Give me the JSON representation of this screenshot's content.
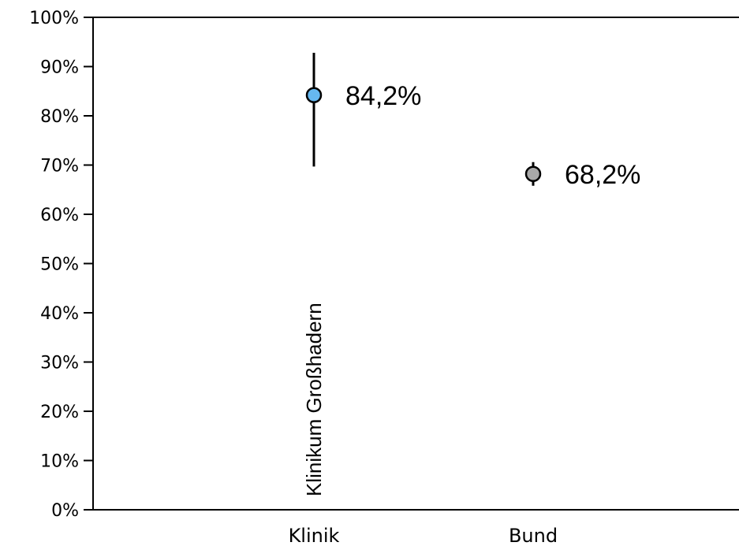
{
  "chart_data": {
    "type": "scatter",
    "title": "",
    "xlabel": "",
    "ylabel": "",
    "ylim": [
      0,
      100
    ],
    "yticks": [
      "0%",
      "10%",
      "20%",
      "30%",
      "40%",
      "50%",
      "60%",
      "70%",
      "80%",
      "90%",
      "100%"
    ],
    "categories": [
      "Klinik",
      "Bund"
    ],
    "points": [
      {
        "category": "Klinik",
        "value": 84.2,
        "ci_low": 69.7,
        "ci_high": 92.8,
        "label": "84,2%",
        "color": "#66b8f0"
      },
      {
        "category": "Bund",
        "value": 68.2,
        "ci_low": 65.8,
        "ci_high": 70.6,
        "label": "68,2%",
        "color": "#a8a8a8"
      }
    ],
    "annotation": "Klinikum Großhadern",
    "grid": false,
    "legend": "none"
  }
}
